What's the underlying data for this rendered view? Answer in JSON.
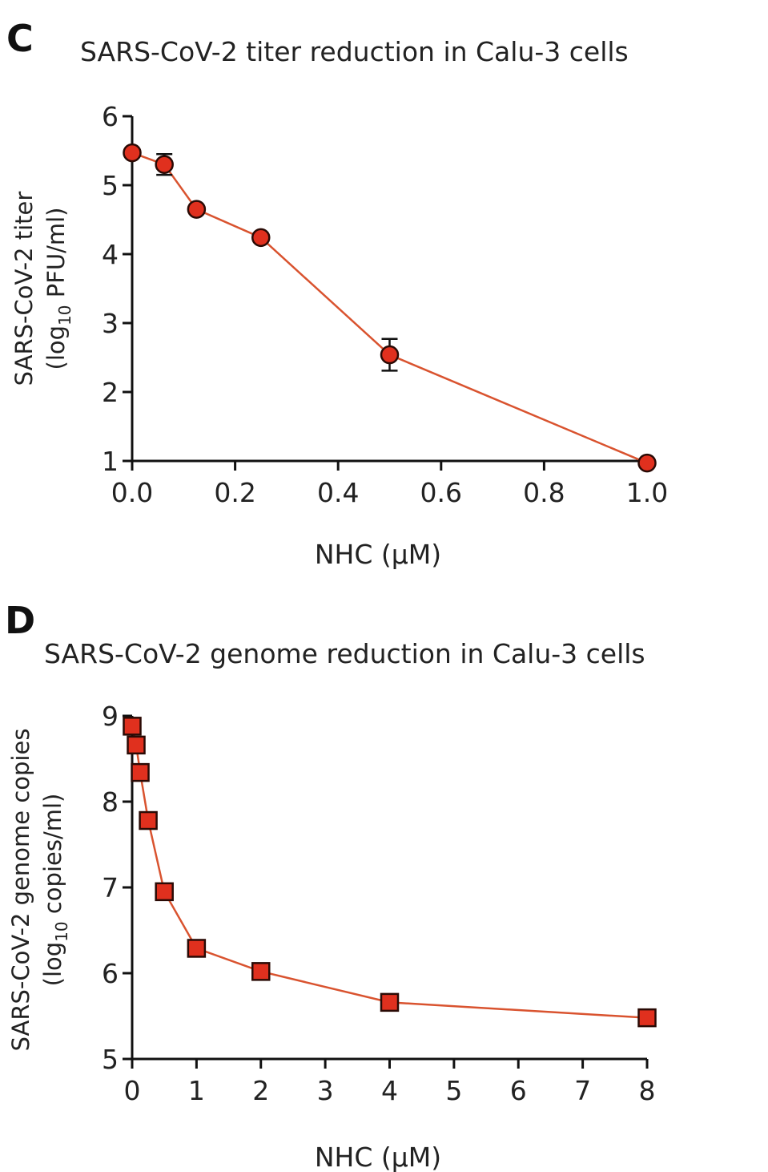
{
  "chart_data": [
    {
      "panel": "C",
      "type": "line",
      "title": "SARS-CoV-2 titer reduction in Calu-3 cells",
      "xlabel": "NHC (µM)",
      "ylabel_line1": "SARS-CoV-2 titer",
      "ylabel_line2_pre": "(log",
      "ylabel_line2_sub": "10",
      "ylabel_line2_post": " PFU/ml)",
      "xlim": [
        0,
        1.0
      ],
      "ylim": [
        1,
        6
      ],
      "xticks": [
        "0.0",
        "0.2",
        "0.4",
        "0.6",
        "0.8",
        "1.0"
      ],
      "xtick_values": [
        0,
        0.2,
        0.4,
        0.6,
        0.8,
        1.0
      ],
      "yticks": [
        "1",
        "2",
        "3",
        "4",
        "5",
        "6"
      ],
      "ytick_values": [
        1,
        2,
        3,
        4,
        5,
        6
      ],
      "marker": "circle",
      "x": [
        0,
        0.0625,
        0.125,
        0.25,
        0.5,
        1.0
      ],
      "y": [
        5.47,
        5.3,
        4.65,
        4.24,
        2.54,
        0.97
      ],
      "error": [
        0,
        0.15,
        0,
        0,
        0.23,
        0
      ],
      "color": "#e0301e",
      "line_color": "#d9532f",
      "grid": false
    },
    {
      "panel": "D",
      "type": "line",
      "title": "SARS-CoV-2 genome reduction in Calu-3 cells",
      "xlabel": "NHC (µM)",
      "ylabel_line1": "SARS-CoV-2 genome copies",
      "ylabel_line2_pre": "(log",
      "ylabel_line2_sub": "10",
      "ylabel_line2_post": " copies/ml)",
      "xlim": [
        0,
        8
      ],
      "ylim": [
        5,
        9
      ],
      "xticks": [
        "0",
        "1",
        "2",
        "3",
        "4",
        "5",
        "6",
        "7",
        "8"
      ],
      "xtick_values": [
        0,
        1,
        2,
        3,
        4,
        5,
        6,
        7,
        8
      ],
      "yticks": [
        "5",
        "6",
        "7",
        "8",
        "9"
      ],
      "ytick_values": [
        5,
        6,
        7,
        8,
        9
      ],
      "marker": "square",
      "x": [
        0,
        0.0625,
        0.125,
        0.25,
        0.5,
        1,
        2,
        4,
        8
      ],
      "y": [
        8.88,
        8.66,
        8.34,
        7.78,
        6.95,
        6.29,
        6.02,
        5.66,
        5.48
      ],
      "error": [
        0,
        0,
        0,
        0,
        0,
        0,
        0,
        0,
        0
      ],
      "color": "#e0301e",
      "line_color": "#d9532f",
      "grid": false
    }
  ]
}
